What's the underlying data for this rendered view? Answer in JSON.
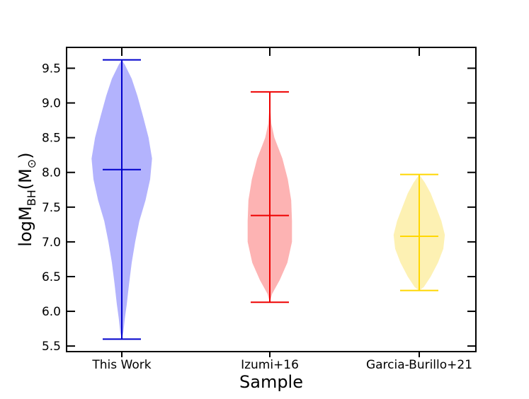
{
  "chart_data": {
    "type": "violin",
    "xlabel": "Sample",
    "ylabel": "logM",
    "ylabel_sub": "BH",
    "ylabel_suffix": "(M",
    "ylabel_sun": "⊙",
    "ylabel_close": ")",
    "ylim": [
      5.42,
      9.8
    ],
    "yticks": [
      5.5,
      6.0,
      6.5,
      7.0,
      7.5,
      8.0,
      8.5,
      9.0,
      9.5
    ],
    "ytick_labels": [
      "5.5",
      "6.0",
      "6.5",
      "7.0",
      "7.5",
      "8.0",
      "8.5",
      "9.0",
      "9.5"
    ],
    "categories": [
      "This Work",
      "Izumi+16",
      "Garcia-Burillo+21"
    ],
    "grid": false,
    "series": [
      {
        "name": "This Work",
        "color": "#0000cc",
        "fill": "#b3b3fd",
        "min": 5.6,
        "max": 9.62,
        "median": 8.04,
        "density_profile": [
          [
            5.6,
            0.0
          ],
          [
            5.7,
            0.04
          ],
          [
            5.9,
            0.08
          ],
          [
            6.1,
            0.13
          ],
          [
            6.4,
            0.19
          ],
          [
            6.7,
            0.26
          ],
          [
            7.0,
            0.35
          ],
          [
            7.3,
            0.46
          ],
          [
            7.6,
            0.62
          ],
          [
            7.9,
            0.74
          ],
          [
            8.2,
            0.79
          ],
          [
            8.5,
            0.7
          ],
          [
            8.8,
            0.56
          ],
          [
            9.1,
            0.41
          ],
          [
            9.35,
            0.26
          ],
          [
            9.55,
            0.08
          ],
          [
            9.62,
            0.0
          ]
        ]
      },
      {
        "name": "Izumi+16",
        "color": "#ee0000",
        "fill": "#fdb3b3",
        "min": 6.13,
        "max": 9.16,
        "median": 7.38,
        "density_profile": [
          [
            6.13,
            0.0
          ],
          [
            6.25,
            0.06
          ],
          [
            6.45,
            0.26
          ],
          [
            6.7,
            0.46
          ],
          [
            7.0,
            0.58
          ],
          [
            7.3,
            0.58
          ],
          [
            7.6,
            0.56
          ],
          [
            7.9,
            0.47
          ],
          [
            8.2,
            0.33
          ],
          [
            8.5,
            0.12
          ],
          [
            8.7,
            0.04
          ],
          [
            8.9,
            0.015
          ],
          [
            9.16,
            0.0
          ]
        ]
      },
      {
        "name": "Garcia-Burillo+21",
        "color": "#ffd700",
        "fill": "#fdf1b3",
        "min": 6.3,
        "max": 7.97,
        "median": 7.08,
        "density_profile": [
          [
            6.3,
            0.0
          ],
          [
            6.35,
            0.12
          ],
          [
            6.5,
            0.3
          ],
          [
            6.7,
            0.49
          ],
          [
            6.9,
            0.63
          ],
          [
            7.1,
            0.67
          ],
          [
            7.3,
            0.58
          ],
          [
            7.5,
            0.44
          ],
          [
            7.7,
            0.3
          ],
          [
            7.85,
            0.15
          ],
          [
            7.97,
            0.0
          ]
        ]
      }
    ]
  }
}
